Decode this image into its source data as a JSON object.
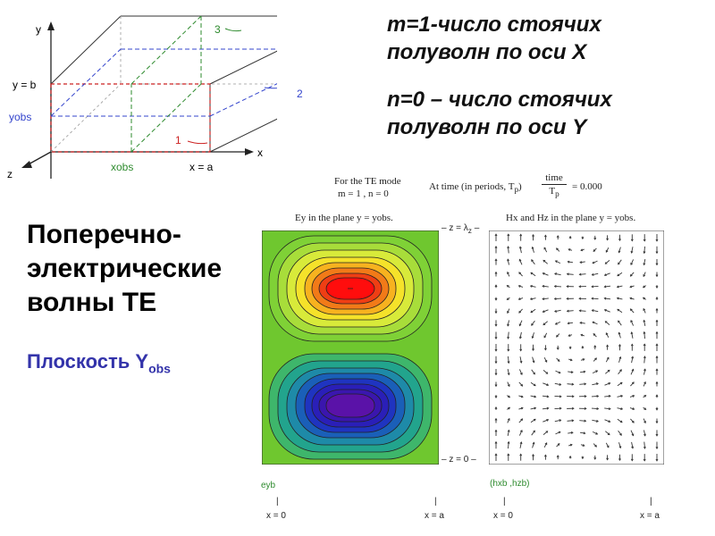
{
  "heading": {
    "m_line1": "m=1-число стоячих",
    "m_line2": "полуволн по оси X",
    "n_line1": "n=0 – число стоячих",
    "n_line2": "полуволн по оси Y"
  },
  "title": {
    "line1": "Поперечно-",
    "line2": "электрические",
    "line3": "волны ТЕ"
  },
  "plane": {
    "prefix": "Плоскость Y",
    "sub": "obs"
  },
  "waveguide": {
    "y_axis": "y",
    "z_axis": "z",
    "x_axis": "x",
    "y_eq_b": "y = b",
    "yobs": "yobs",
    "xobs": "xobs",
    "x_eq_a": "x = a",
    "lbl1": "1",
    "lbl2": "2",
    "lbl3": "3"
  },
  "te_header": {
    "mode_line1": "For the TE mode",
    "mode_line2": "m = 1  , n = 0",
    "time_text": "At time (in periods, T",
    "time_sub": "p",
    "time_close": ")",
    "frac_num": "time",
    "frac_den": "T",
    "frac_den_sub": "p",
    "time_value": "= 0.000"
  },
  "left_plot": {
    "title": "Ey in the plane y = yobs.",
    "legend": "eyb",
    "x0": "x = 0",
    "xa": "x = a"
  },
  "right_plot": {
    "title": "Hx and Hz in the plane y = yobs.",
    "legend": "(hxb ,hzb)",
    "x0": "x = 0",
    "xa": "x = a"
  },
  "z_labels": {
    "top": "– z = λ",
    "top_sub": "z",
    "top_end": " –",
    "bottom": "– z = 0 –"
  },
  "colors": {
    "box_red": "#cc2222",
    "dash_green": "#2e8b2e",
    "dash_blue": "#3344cc",
    "plane_text": "#3333aa"
  }
}
